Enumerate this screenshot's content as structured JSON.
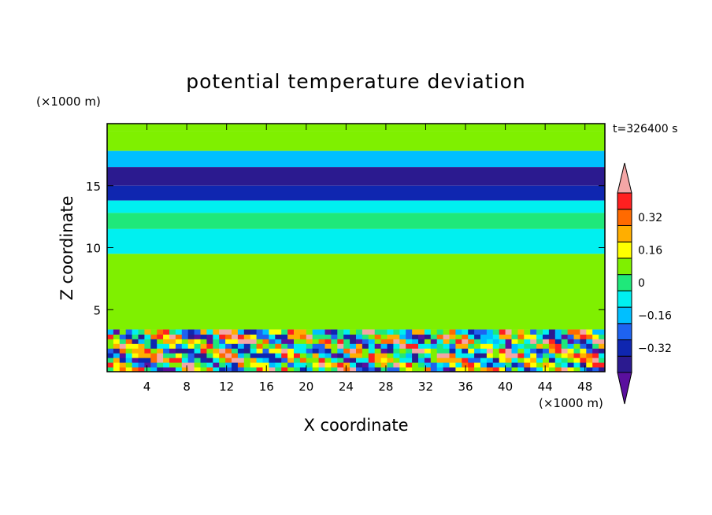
{
  "chart_data": {
    "type": "heatmap",
    "title": "potential temperature deviation",
    "xlabel": "X coordinate",
    "ylabel": "Z coordinate",
    "x_unit": "(×1000 m)",
    "y_unit": "(×1000 m)",
    "time_label": "t=326400 s",
    "xlim": [
      0,
      50
    ],
    "ylim": [
      0,
      20
    ],
    "x_ticks": [
      4,
      8,
      12,
      16,
      20,
      24,
      28,
      32,
      36,
      40,
      44,
      48
    ],
    "y_ticks": [
      5,
      10,
      15
    ],
    "colorbar": {
      "levels": [
        -0.48,
        -0.4,
        -0.32,
        -0.24,
        -0.16,
        -0.08,
        0,
        0.08,
        0.16,
        0.24,
        0.32,
        0.4
      ],
      "colors": [
        "#5a0f9e",
        "#2b1a8f",
        "#0f26b0",
        "#1e63f0",
        "#00bfff",
        "#00f0f0",
        "#1fe87a",
        "#7ff000",
        "#ffff00",
        "#ffae00",
        "#ff6a00",
        "#ff2020",
        "#f4a6a6"
      ],
      "labels": [
        {
          "value": 0.32,
          "text": "0.32"
        },
        {
          "value": 0.16,
          "text": "0.16"
        },
        {
          "value": 0,
          "text": "0"
        },
        {
          "value": -0.16,
          "text": "−0.16"
        },
        {
          "value": -0.32,
          "text": "−0.32"
        }
      ],
      "extend": "both"
    },
    "layers": [
      {
        "z": [
          19.4,
          20.0
        ],
        "level": 0.05
      },
      {
        "z": [
          17.8,
          19.4
        ],
        "level": 0.02
      },
      {
        "z": [
          16.5,
          17.8
        ],
        "level": -0.2
      },
      {
        "z": [
          15.0,
          16.5
        ],
        "level": -0.42
      },
      {
        "z": [
          13.8,
          15.0
        ],
        "level": -0.34
      },
      {
        "z": [
          12.8,
          13.8
        ],
        "level": -0.1
      },
      {
        "z": [
          11.5,
          12.8
        ],
        "level": -0.05
      },
      {
        "z": [
          9.5,
          11.5
        ],
        "level": -0.12
      },
      {
        "z": [
          8.0,
          9.5
        ],
        "level": 0.02
      },
      {
        "z": [
          3.4,
          8.0
        ],
        "level": 0.0
      }
    ],
    "grid": false,
    "legend_position": "right"
  }
}
